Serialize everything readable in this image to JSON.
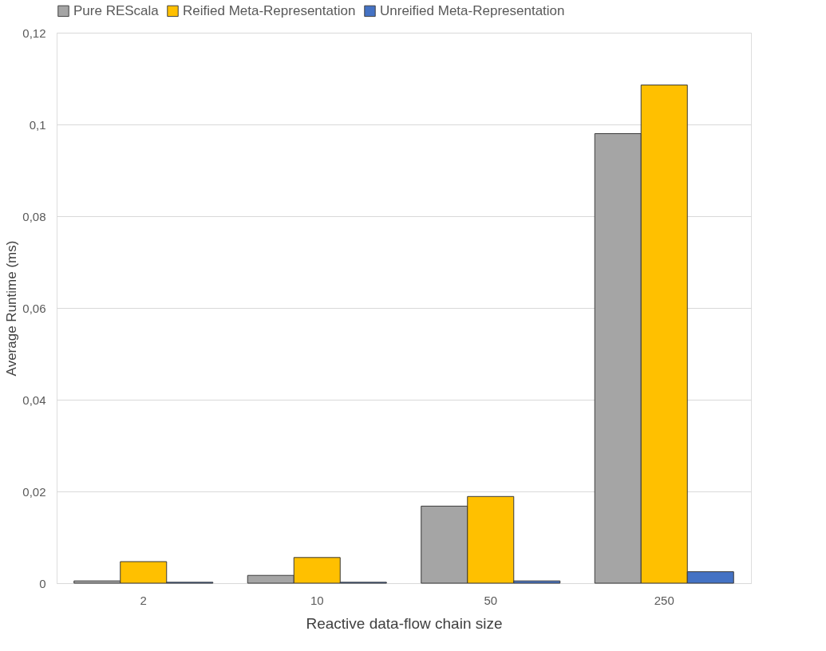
{
  "chart_data": {
    "type": "bar",
    "xlabel": "Reactive data-flow chain size",
    "ylabel": "Average Runtime (ms)",
    "categories": [
      "2",
      "10",
      "50",
      "250"
    ],
    "series": [
      {
        "name": "Pure REScala",
        "color": "#a5a5a5",
        "values": [
          0.0005,
          0.0017,
          0.0168,
          0.098
        ]
      },
      {
        "name": "Reified Meta-Representation",
        "color": "#ffc000",
        "values": [
          0.0047,
          0.0056,
          0.0189,
          0.1086
        ]
      },
      {
        "name": "Unreified Meta-Representation",
        "color": "#4472c4",
        "values": [
          0.0002,
          0.0002,
          0.0005,
          0.0025
        ]
      }
    ],
    "ylim": [
      0,
      0.12
    ],
    "yticks": [
      {
        "value": 0,
        "label": "0"
      },
      {
        "value": 0.02,
        "label": "0,02"
      },
      {
        "value": 0.04,
        "label": "0,04"
      },
      {
        "value": 0.06,
        "label": "0,06"
      },
      {
        "value": 0.08,
        "label": "0,08"
      },
      {
        "value": 0.1,
        "label": "0,1"
      },
      {
        "value": 0.12,
        "label": "0,12"
      }
    ],
    "grid": "y",
    "legend": "top"
  }
}
